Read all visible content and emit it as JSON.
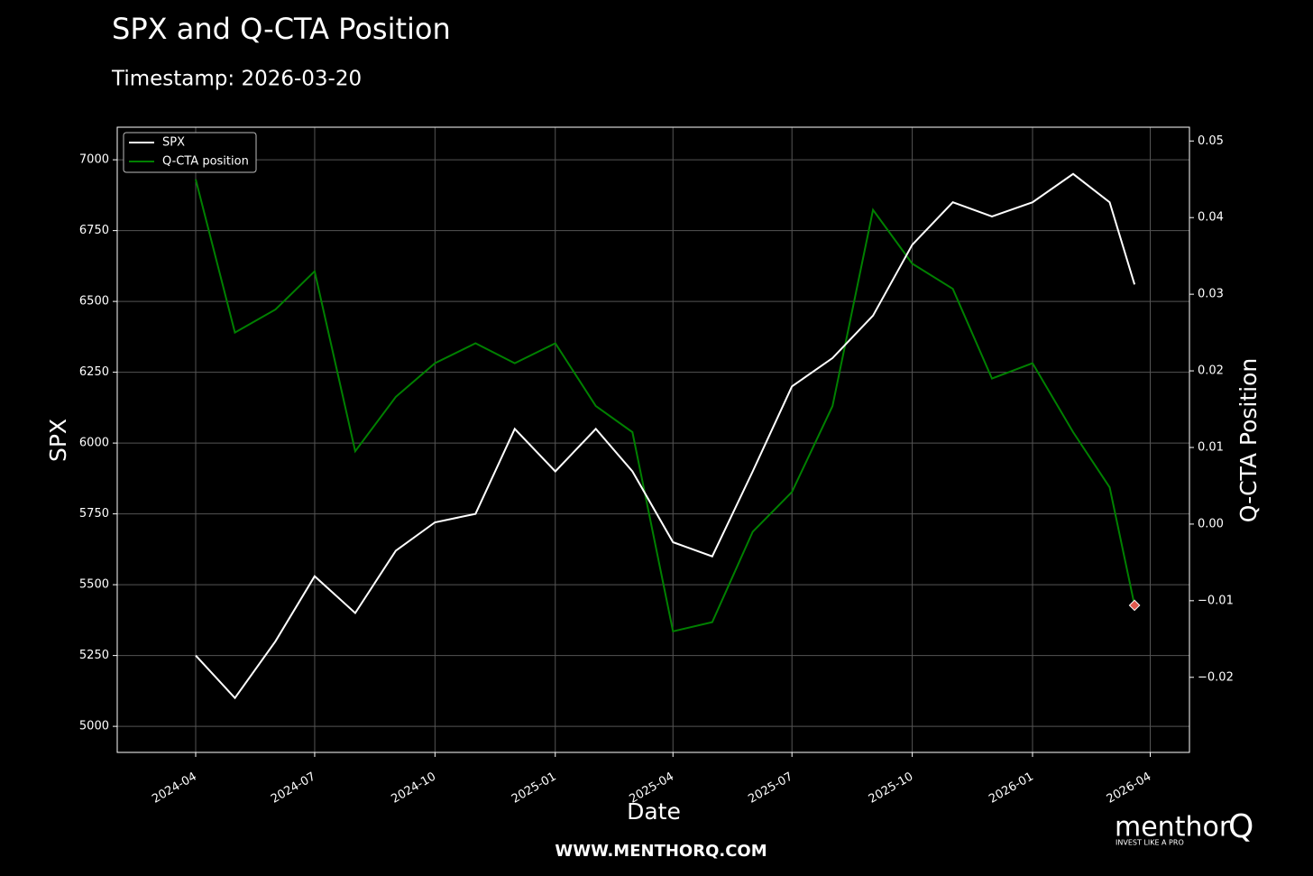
{
  "chart_data": {
    "type": "line",
    "title": "SPX and Q-CTA Position",
    "subtitle": "Timestamp: 2026-03-20",
    "x_label": "Date",
    "y_label": "SPX",
    "y2_label": "Q-CTA Position",
    "x": [
      "2024-04",
      "2024-05",
      "2024-06",
      "2024-07",
      "2024-08",
      "2024-09",
      "2024-10",
      "2024-11",
      "2024-12",
      "2025-01",
      "2025-02",
      "2025-03",
      "2025-04",
      "2025-05",
      "2025-06",
      "2025-07",
      "2025-08",
      "2025-09",
      "2025-10",
      "2025-11",
      "2025-12",
      "2026-01",
      "2026-02",
      "2026-03",
      "2026-03-20"
    ],
    "series": [
      {
        "name": "SPX",
        "color": "#ffffff",
        "axis": "y",
        "values": [
          5250,
          5100,
          5300,
          5530,
          5400,
          5620,
          5720,
          5750,
          6050,
          5900,
          6050,
          5900,
          5650,
          5600,
          5900,
          6200,
          6300,
          6450,
          6700,
          6850,
          6800,
          6850,
          6950,
          6850,
          6560
        ]
      },
      {
        "name": "Q-CTA position",
        "color": "#008000",
        "axis": "y2",
        "last_point_marker": "#e05a4f",
        "values": [
          0.045,
          0.025,
          0.028,
          0.033,
          0.0095,
          0.0166,
          0.021,
          0.0236,
          0.021,
          0.0236,
          0.0154,
          0.012,
          -0.014,
          -0.0128,
          -0.001,
          0.0042,
          0.0154,
          0.041,
          0.034,
          0.0307,
          0.019,
          0.021,
          0.012,
          0.0048,
          -0.0106
        ]
      }
    ],
    "xlim": [
      "2024-02",
      "2026-05"
    ],
    "xticks": [
      "2024-04",
      "2024-07",
      "2024-10",
      "2025-01",
      "2025-04",
      "2025-07",
      "2025-10",
      "2026-01",
      "2026-04"
    ],
    "ylim": [
      4908,
      7115
    ],
    "yticks": [
      5000,
      5250,
      5500,
      5750,
      6000,
      6250,
      6500,
      6750,
      7000
    ],
    "y2lim": [
      -0.0298,
      0.0518
    ],
    "y2ticks": [
      {
        "value": -0.02,
        "label": "−0.02"
      },
      {
        "value": -0.01,
        "label": "−0.01"
      },
      {
        "value": 0,
        "label": "0.00"
      },
      0.01,
      0.02,
      0.03,
      0.04,
      0.05
    ],
    "grid": true,
    "legend": "upper left"
  },
  "footer": "WWW.MENTHORQ.COM",
  "brand": {
    "name": "menthor",
    "letter": "Q",
    "tagline": "INVEST LIKE A PRO"
  }
}
